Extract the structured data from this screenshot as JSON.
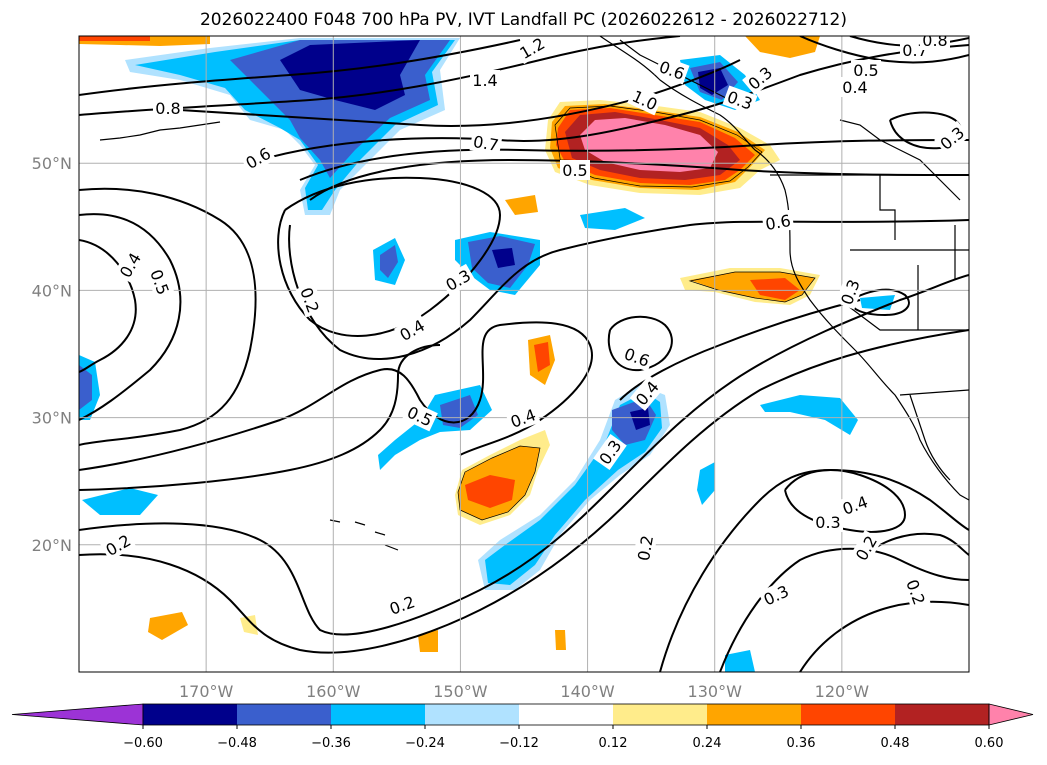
{
  "title": "2026022400 F048 700 hPa PV, IVT Landfall PC (2026022612 - 2026022712)",
  "axes": {
    "lon_ticks": [
      "170°W",
      "160°W",
      "150°W",
      "140°W",
      "130°W",
      "120°W"
    ],
    "lat_ticks": [
      "50°N",
      "40°N",
      "30°N",
      "20°N"
    ]
  },
  "contour_labels": [
    "1.2",
    "1.4",
    "0.8",
    "1.0",
    "0.7",
    "0.5",
    "0.6",
    "0.6",
    "0.4",
    "0.5",
    "0.2",
    "0.3",
    "0.4",
    "0.5",
    "0.4",
    "0.6",
    "0.4",
    "0.3",
    "0.3",
    "0.6",
    "0.7",
    "0.8",
    "0.5",
    "0.4",
    "0.3",
    "0.3",
    "0.3",
    "0.4",
    "0.3",
    "0.2",
    "0.2",
    "0.2",
    "0.2",
    "0.3",
    "0.2"
  ],
  "colorbar": {
    "tick_labels": [
      "−0.60",
      "−0.48",
      "−0.36",
      "−0.24",
      "−0.12",
      "0.12",
      "0.24",
      "0.36",
      "0.48",
      "0.60"
    ],
    "colors": [
      "#9c33d6",
      "#00008b",
      "#3a5fcd",
      "#00bfff",
      "#b0e2ff",
      "#ffffff",
      "#ffec8b",
      "#ffa500",
      "#ff4500",
      "#b22222",
      "#ff82ab"
    ]
  },
  "chart_data": {
    "type": "contour-map",
    "projection": "lat-lon",
    "lon_range": [
      -180,
      -110
    ],
    "lat_range": [
      10,
      60
    ],
    "grid": true,
    "contour_variable": "700 hPa PV",
    "contour_levels_labeled": [
      0.2,
      0.3,
      0.4,
      0.5,
      0.6,
      0.7,
      0.8,
      1.0,
      1.2,
      1.4
    ],
    "fill_variable": "IVT Landfall PC",
    "fill_levels": [
      -0.6,
      -0.48,
      -0.36,
      -0.24,
      -0.12,
      0.12,
      0.24,
      0.36,
      0.48,
      0.6
    ],
    "colorbar_extend": "both",
    "colorbar_position": "bottom"
  }
}
